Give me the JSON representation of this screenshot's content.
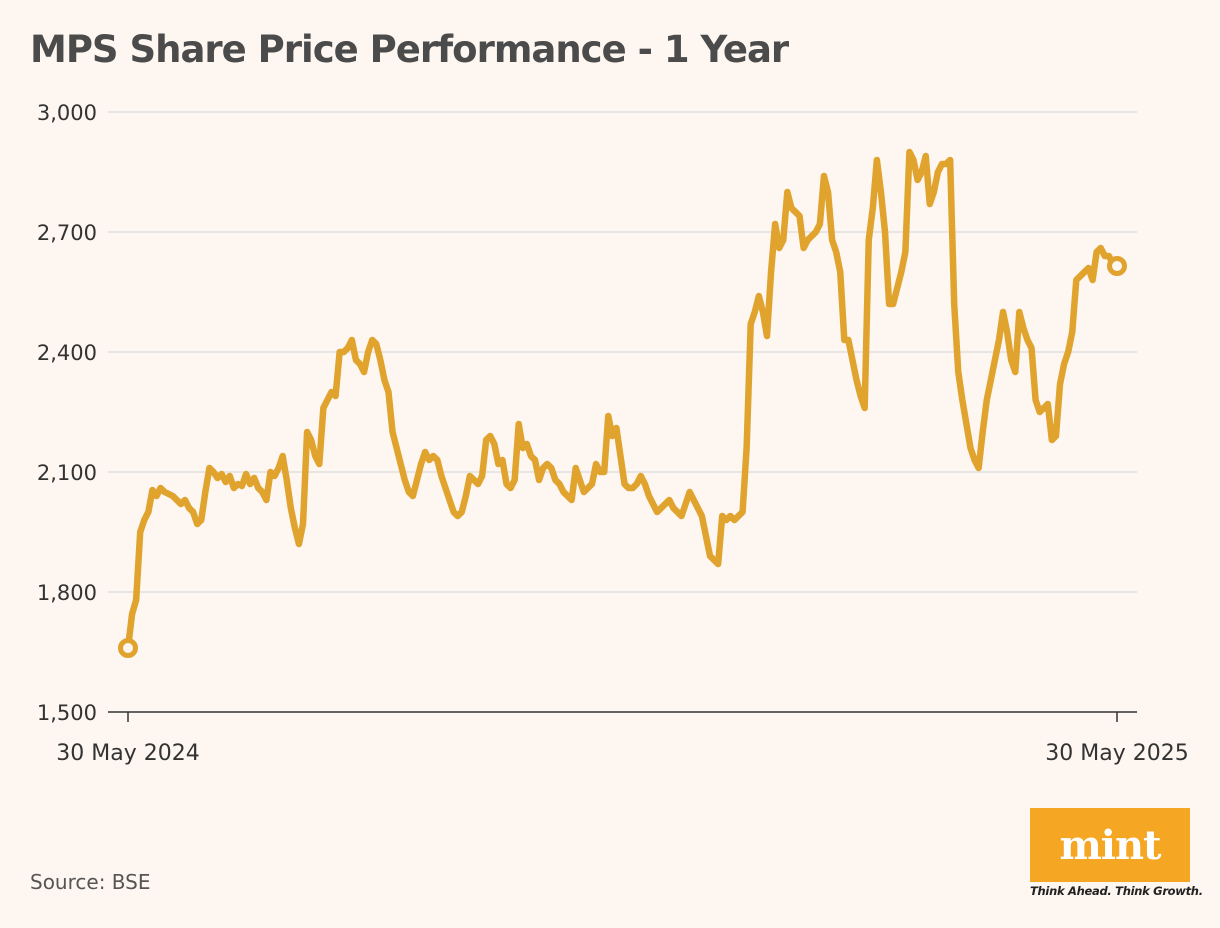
{
  "header": {
    "title": "MPS Share Price Performance - 1 Year"
  },
  "footer": {
    "source": "Source: BSE",
    "logo_text": "mint",
    "tagline": "Think Ahead. Think Growth."
  },
  "colors": {
    "line": "#e0a32e",
    "grid": "#dcdcdc",
    "axis_text": "#333333",
    "background": "#fdf6f1",
    "logo_bg": "#f5a623"
  },
  "chart_data": {
    "type": "line",
    "title": "MPS Share Price Performance - 1 Year",
    "xlabel": "",
    "ylabel": "",
    "ylim": [
      1500,
      3000
    ],
    "yticks": [
      1500,
      1800,
      2100,
      2400,
      2700,
      3000
    ],
    "ytick_labels": [
      "1,500",
      "1,800",
      "2,100",
      "2,400",
      "2,700",
      "3,000"
    ],
    "x_start_label": "30 May 2024",
    "x_end_label": "30 May 2025",
    "grid": true,
    "series": [
      {
        "name": "MPS",
        "values": [
          1660,
          1745,
          1780,
          1950,
          1980,
          2000,
          2055,
          2040,
          2060,
          2050,
          2045,
          2040,
          2030,
          2020,
          2030,
          2010,
          2000,
          1970,
          1980,
          2050,
          2110,
          2100,
          2085,
          2095,
          2075,
          2090,
          2060,
          2070,
          2065,
          2095,
          2070,
          2085,
          2060,
          2050,
          2030,
          2100,
          2090,
          2110,
          2140,
          2080,
          2010,
          1960,
          1920,
          1970,
          2200,
          2180,
          2140,
          2120,
          2260,
          2280,
          2300,
          2290,
          2400,
          2400,
          2410,
          2430,
          2380,
          2370,
          2350,
          2400,
          2430,
          2420,
          2380,
          2330,
          2300,
          2200,
          2160,
          2120,
          2080,
          2050,
          2040,
          2080,
          2120,
          2150,
          2130,
          2140,
          2130,
          2090,
          2060,
          2030,
          2000,
          1990,
          2000,
          2040,
          2090,
          2080,
          2070,
          2090,
          2180,
          2190,
          2170,
          2120,
          2130,
          2070,
          2060,
          2080,
          2220,
          2160,
          2170,
          2140,
          2130,
          2080,
          2110,
          2120,
          2110,
          2080,
          2070,
          2050,
          2040,
          2030,
          2110,
          2080,
          2050,
          2060,
          2070,
          2120,
          2100,
          2100,
          2240,
          2190,
          2210,
          2140,
          2070,
          2060,
          2060,
          2070,
          2090,
          2070,
          2040,
          2020,
          2000,
          2010,
          2020,
          2030,
          2010,
          2000,
          1990,
          2020,
          2050,
          2030,
          2010,
          1990,
          1940,
          1890,
          1880,
          1870,
          1990,
          1980,
          1990,
          1980,
          1990,
          2000,
          2160,
          2470,
          2500,
          2540,
          2500,
          2440,
          2600,
          2720,
          2660,
          2680,
          2800,
          2760,
          2750,
          2740,
          2660,
          2680,
          2690,
          2700,
          2720,
          2840,
          2800,
          2680,
          2650,
          2600,
          2430,
          2430,
          2380,
          2330,
          2290,
          2260,
          2680,
          2760,
          2880,
          2800,
          2700,
          2520,
          2520,
          2560,
          2600,
          2650,
          2900,
          2880,
          2830,
          2850,
          2890,
          2770,
          2800,
          2850,
          2870,
          2870,
          2880,
          2520,
          2350,
          2280,
          2220,
          2160,
          2130,
          2110,
          2200,
          2280,
          2330,
          2380,
          2430,
          2500,
          2450,
          2380,
          2350,
          2500,
          2460,
          2430,
          2410,
          2280,
          2250,
          2260,
          2270,
          2180,
          2190,
          2320,
          2370,
          2400,
          2450,
          2580,
          2590,
          2600,
          2610,
          2580,
          2650,
          2660,
          2640,
          2640,
          2620,
          2615
        ]
      }
    ]
  }
}
